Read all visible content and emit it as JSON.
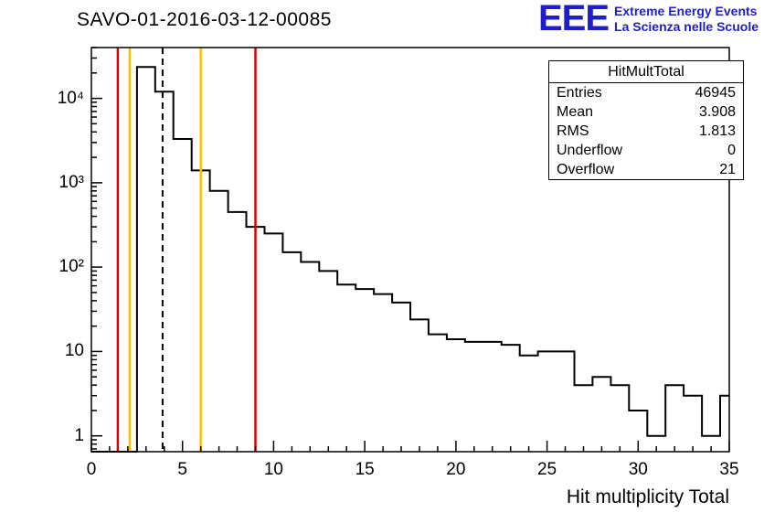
{
  "header": {
    "title": "SAVO-01-2016-03-12-00085"
  },
  "logo": {
    "acronym": "EEE",
    "line1": "Extreme Energy Events",
    "line2": "La Scienza nelle Scuole",
    "color": "#1e1ecb"
  },
  "stats": {
    "title": "HitMultTotal",
    "rows": [
      {
        "label": "Entries",
        "value": "46945"
      },
      {
        "label": "Mean",
        "value": "3.908"
      },
      {
        "label": "RMS",
        "value": "1.813"
      },
      {
        "label": "Underflow",
        "value": "0"
      },
      {
        "label": "Overflow",
        "value": "21"
      }
    ]
  },
  "chart_data": {
    "type": "bar",
    "title": "SAVO-01-2016-03-12-00085",
    "xlabel": "Hit multiplicity Total",
    "ylabel": "",
    "yscale": "log",
    "x_range": [
      0,
      35
    ],
    "ylim": [
      0.65,
      40000
    ],
    "bin_width": 1,
    "bin_centers": [
      0,
      1,
      2,
      3,
      4,
      5,
      6,
      7,
      8,
      9,
      10,
      11,
      12,
      13,
      14,
      15,
      16,
      17,
      18,
      19,
      20,
      21,
      22,
      23,
      24,
      25,
      26,
      27,
      28,
      29,
      30,
      31,
      32,
      33,
      34,
      35
    ],
    "values": [
      0,
      0,
      0,
      23500,
      12000,
      3300,
      1400,
      800,
      450,
      300,
      250,
      150,
      115,
      90,
      62,
      55,
      48,
      38,
      24,
      16,
      14,
      13,
      13,
      12,
      9,
      10,
      10,
      4,
      5,
      4,
      2,
      1,
      4,
      3,
      1,
      3
    ],
    "line_color": "#000000",
    "grid": false,
    "xticks": [
      {
        "v": 0,
        "label": "0"
      },
      {
        "v": 5,
        "label": "5"
      },
      {
        "v": 10,
        "label": "10"
      },
      {
        "v": 15,
        "label": "15"
      },
      {
        "v": 20,
        "label": "20"
      },
      {
        "v": 25,
        "label": "25"
      },
      {
        "v": 30,
        "label": "30"
      },
      {
        "v": 35,
        "label": "35"
      }
    ],
    "yticks": [
      {
        "v": 1,
        "label": "1"
      },
      {
        "v": 10,
        "label": "10"
      },
      {
        "v": 100,
        "label": "10²"
      },
      {
        "v": 1000,
        "label": "10³"
      },
      {
        "v": 10000,
        "label": "10⁴"
      }
    ],
    "vlines": [
      {
        "x": 1.45,
        "color": "#dd0000",
        "dash": "",
        "width": 2.5
      },
      {
        "x": 2.1,
        "color": "#ffbf00",
        "dash": "",
        "width": 2.5
      },
      {
        "x": 3.908,
        "color": "#000000",
        "dash": "7,5",
        "width": 2
      },
      {
        "x": 6.0,
        "color": "#ffbf00",
        "dash": "",
        "width": 2.5
      },
      {
        "x": 9.0,
        "color": "#dd0000",
        "dash": "",
        "width": 2.5
      }
    ]
  }
}
